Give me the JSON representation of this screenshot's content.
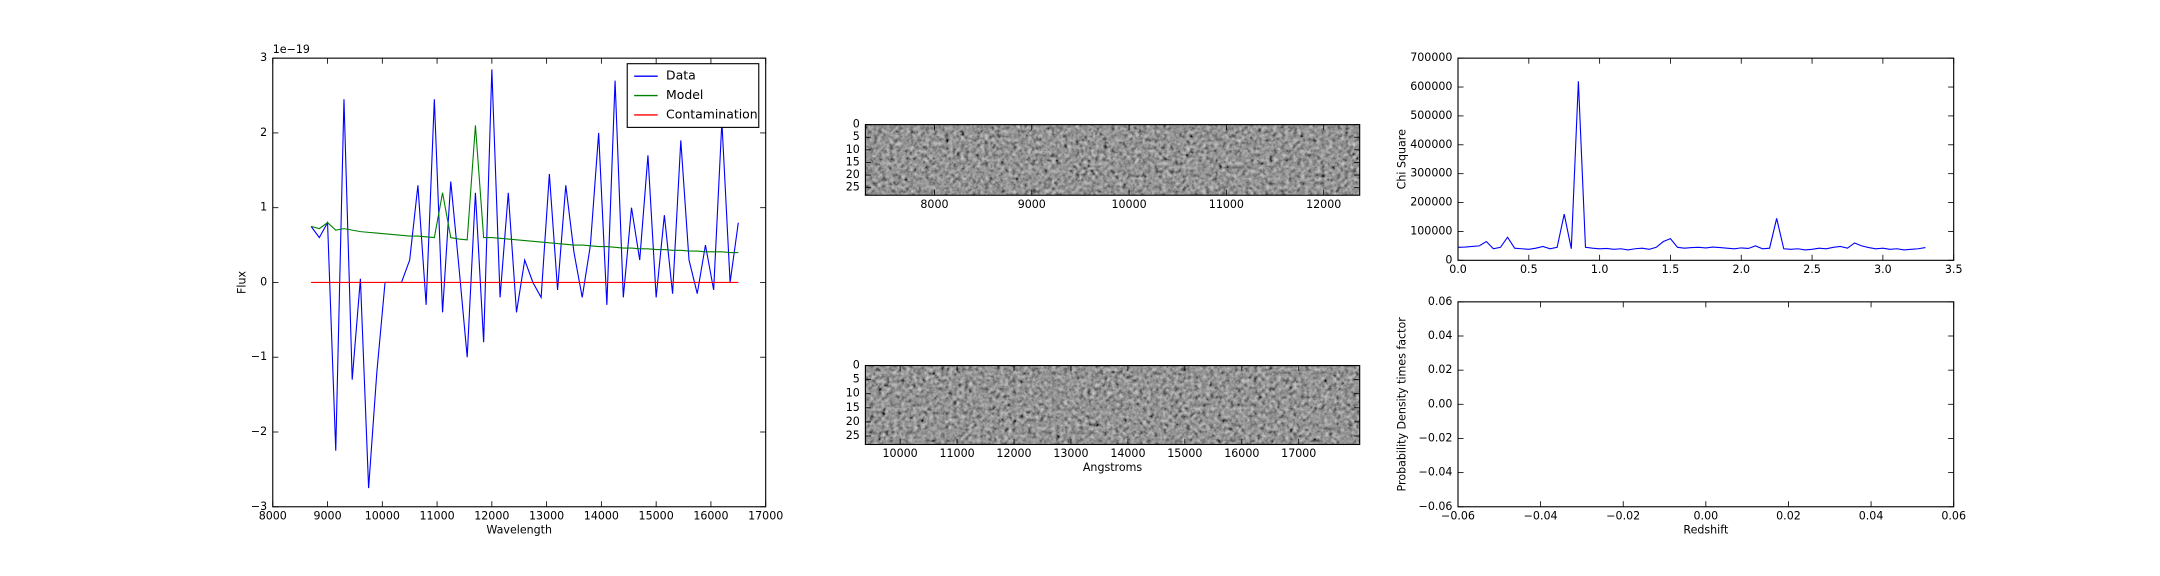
{
  "chart_data": [
    {
      "type": "line",
      "xlabel": "Wavelength",
      "ylabel": "Flux",
      "offset_text": "1e−19",
      "x": [
        8700,
        8850,
        9000,
        9150,
        9300,
        9450,
        9600,
        9750,
        9900,
        10050,
        10200,
        10350,
        10500,
        10650,
        10800,
        10950,
        11100,
        11250,
        11400,
        11550,
        11700,
        11850,
        12000,
        12150,
        12300,
        12450,
        12600,
        12750,
        12900,
        13050,
        13200,
        13350,
        13500,
        13650,
        13800,
        13950,
        14100,
        14250,
        14400,
        14550,
        14700,
        14850,
        15000,
        15150,
        15300,
        15450,
        15600,
        15750,
        15900,
        16050,
        16200,
        16350,
        16500
      ],
      "series": [
        {
          "name": "Data",
          "color": "#0000ff",
          "values": [
            0.75,
            0.6,
            0.8,
            -2.25,
            2.45,
            -1.3,
            0.05,
            -2.75,
            -1.2,
            0.0,
            0.0,
            0.0,
            0.3,
            1.3,
            -0.3,
            2.45,
            -0.4,
            1.35,
            0.2,
            -1.0,
            1.2,
            -0.8,
            2.85,
            -0.2,
            1.2,
            -0.4,
            0.3,
            0.0,
            -0.2,
            1.45,
            -0.1,
            1.3,
            0.4,
            -0.2,
            0.5,
            2.0,
            -0.3,
            2.7,
            -0.2,
            1.0,
            0.3,
            1.7,
            -0.2,
            0.9,
            -0.15,
            1.9,
            0.3,
            -0.15,
            0.5,
            -0.1,
            2.15,
            0.0,
            0.8
          ]
        },
        {
          "name": "Model",
          "color": "#008000",
          "values": [
            0.75,
            0.72,
            0.8,
            0.7,
            0.72,
            0.7,
            0.68,
            0.67,
            0.66,
            0.65,
            0.64,
            0.63,
            0.62,
            0.62,
            0.61,
            0.6,
            1.2,
            0.6,
            0.58,
            0.57,
            2.1,
            0.6,
            0.6,
            0.59,
            0.58,
            0.57,
            0.56,
            0.55,
            0.54,
            0.53,
            0.52,
            0.51,
            0.5,
            0.5,
            0.49,
            0.48,
            0.48,
            0.47,
            0.46,
            0.46,
            0.45,
            0.45,
            0.44,
            0.44,
            0.43,
            0.43,
            0.42,
            0.42,
            0.41,
            0.41,
            0.41,
            0.4,
            0.4
          ]
        },
        {
          "name": "Contamination",
          "color": "#ff0000",
          "values": [
            0,
            0,
            0,
            0,
            0,
            0,
            0,
            0,
            0,
            0,
            0,
            0,
            0,
            0,
            0,
            0,
            0,
            0,
            0,
            0,
            0,
            0,
            0,
            0,
            0,
            0,
            0,
            0,
            0,
            0,
            0,
            0,
            0,
            0,
            0,
            0,
            0,
            0,
            0,
            0,
            0,
            0,
            0,
            0,
            0,
            0,
            0,
            0,
            0,
            0,
            0,
            0,
            0
          ]
        }
      ],
      "xlim": [
        8000,
        17000
      ],
      "xticks": [
        8000,
        9000,
        10000,
        11000,
        12000,
        13000,
        14000,
        15000,
        16000,
        17000
      ],
      "ylim": [
        -3,
        3
      ],
      "yticks": [
        {
          "value": -3,
          "label": "−3"
        },
        {
          "value": -2,
          "label": "−2"
        },
        {
          "value": -1,
          "label": "−1"
        },
        0,
        1,
        2,
        3
      ],
      "legend": "upper right"
    },
    {
      "type": "image",
      "xlim": [
        7290,
        12370
      ],
      "xticks": [
        8000,
        9000,
        10000,
        11000,
        12000
      ],
      "ylim": [
        28,
        0
      ],
      "yticks": [
        0,
        5,
        10,
        15,
        20,
        25
      ]
    },
    {
      "type": "image",
      "xlabel": "Angstroms",
      "xlim": [
        9390,
        18070
      ],
      "xticks": [
        10000,
        11000,
        12000,
        13000,
        14000,
        15000,
        16000,
        17000
      ],
      "ylim": [
        28,
        0
      ],
      "yticks": [
        0,
        5,
        10,
        15,
        20,
        25
      ]
    },
    {
      "type": "line",
      "ylabel": "Chi Square",
      "x": [
        0,
        0.05,
        0.1,
        0.15,
        0.2,
        0.25,
        0.3,
        0.35,
        0.4,
        0.45,
        0.5,
        0.55,
        0.6,
        0.65,
        0.7,
        0.75,
        0.8,
        0.85,
        0.9,
        0.95,
        1.0,
        1.05,
        1.1,
        1.15,
        1.2,
        1.25,
        1.3,
        1.35,
        1.4,
        1.45,
        1.5,
        1.55,
        1.6,
        1.65,
        1.7,
        1.75,
        1.8,
        1.85,
        1.9,
        1.95,
        2.0,
        2.05,
        2.1,
        2.15,
        2.2,
        2.25,
        2.3,
        2.35,
        2.4,
        2.45,
        2.5,
        2.55,
        2.6,
        2.65,
        2.7,
        2.75,
        2.8,
        2.85,
        2.9,
        2.95,
        3.0,
        3.05,
        3.1,
        3.15,
        3.2,
        3.25,
        3.3
      ],
      "series": [
        {
          "color": "#0000ff",
          "values": [
            45000,
            46000,
            48000,
            50000,
            65000,
            40000,
            45000,
            80000,
            42000,
            40000,
            38000,
            42000,
            48000,
            40000,
            45000,
            160000,
            40000,
            620000,
            45000,
            42000,
            40000,
            41000,
            38000,
            40000,
            36000,
            40000,
            42000,
            38000,
            45000,
            65000,
            75000,
            45000,
            42000,
            44000,
            45000,
            43000,
            46000,
            44000,
            42000,
            40000,
            43000,
            41000,
            50000,
            40000,
            42000,
            145000,
            40000,
            38000,
            40000,
            36000,
            38000,
            42000,
            40000,
            45000,
            48000,
            42000,
            60000,
            50000,
            44000,
            40000,
            42000,
            38000,
            40000,
            36000,
            38000,
            40000,
            44000
          ]
        }
      ],
      "xlim": [
        0,
        3.5
      ],
      "xticks": [
        {
          "value": 0,
          "label": "0.0"
        },
        0.5,
        {
          "value": 1,
          "label": "1.0"
        },
        1.5,
        {
          "value": 2,
          "label": "2.0"
        },
        2.5,
        {
          "value": 3,
          "label": "3.0"
        },
        3.5
      ],
      "ylim": [
        0,
        700000
      ],
      "yticks": [
        0,
        100000,
        200000,
        300000,
        400000,
        500000,
        600000,
        700000
      ]
    },
    {
      "type": "line",
      "xlabel": "Redshift",
      "ylabel": "Probability Density times factor",
      "series": [],
      "xlim": [
        -0.06,
        0.06
      ],
      "xticks": [
        {
          "value": -0.06,
          "label": "−0.06"
        },
        {
          "value": -0.04,
          "label": "−0.04"
        },
        {
          "value": -0.02,
          "label": "−0.02"
        },
        {
          "value": 0,
          "label": "0.00"
        },
        {
          "value": 0.02,
          "label": "0.02"
        },
        {
          "value": 0.04,
          "label": "0.04"
        },
        {
          "value": 0.06,
          "label": "0.06"
        }
      ],
      "ylim": [
        -0.06,
        0.06
      ],
      "yticks": [
        {
          "value": -0.06,
          "label": "−0.06"
        },
        {
          "value": -0.04,
          "label": "−0.04"
        },
        {
          "value": -0.02,
          "label": "−0.02"
        },
        {
          "value": 0,
          "label": "0.00"
        },
        {
          "value": 0.02,
          "label": "0.02"
        },
        {
          "value": 0.04,
          "label": "0.04"
        },
        {
          "value": 0.06,
          "label": "0.06"
        }
      ]
    }
  ]
}
